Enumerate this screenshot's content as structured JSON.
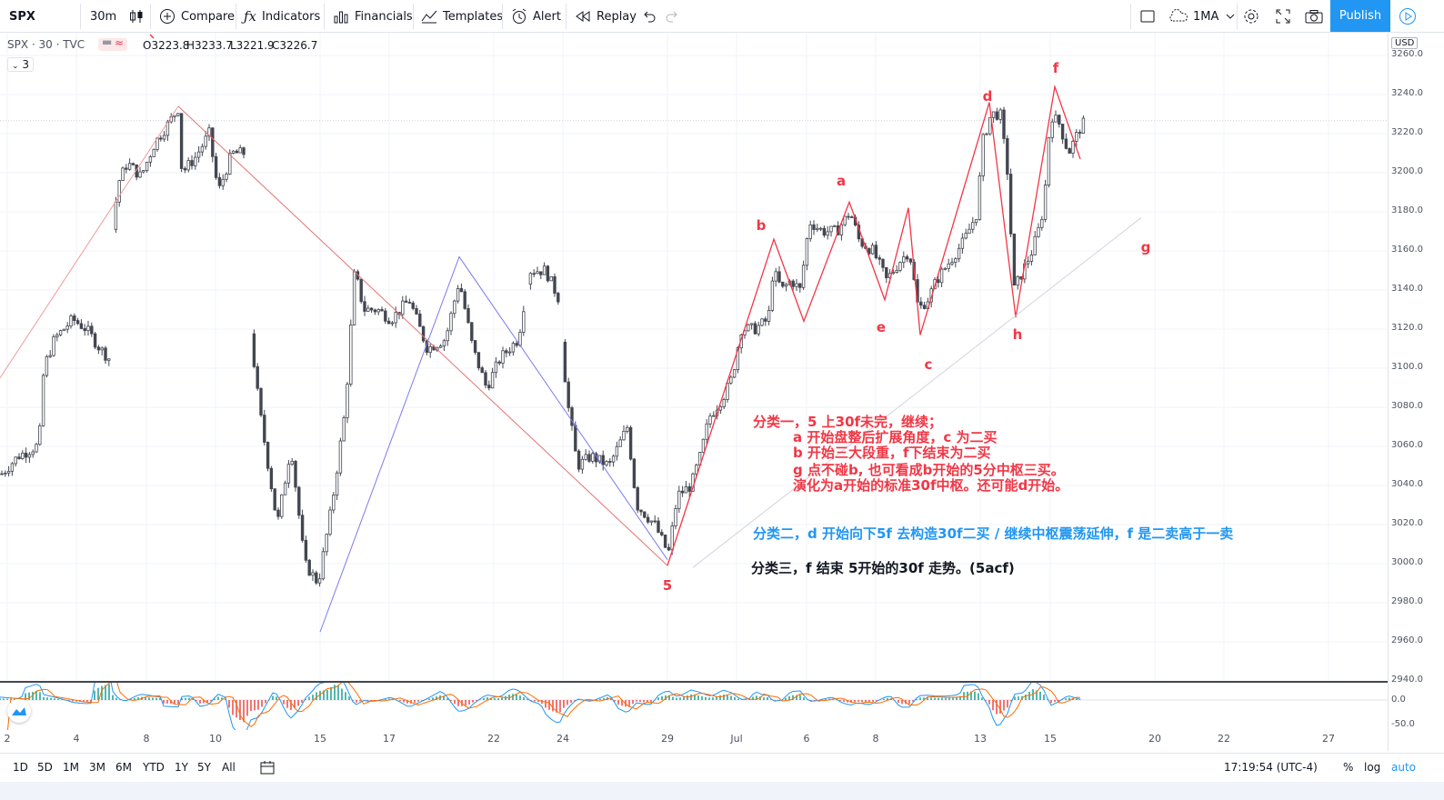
{
  "toolbar": {
    "symbol": "SPX",
    "interval": "30m",
    "compare": "Compare",
    "indicators": "Indicators",
    "financials": "Financials",
    "templates": "Templates",
    "alert": "Alert",
    "replay": "Replay",
    "layout": "1MA",
    "publish": "Publish"
  },
  "legend": {
    "symbol_line": "SPX · 30 · TVC",
    "open": "O3223.8",
    "high": "H3233.7",
    "low": "L3221.9",
    "close": "C3226.7",
    "collapse_count": "3"
  },
  "price_axis": {
    "currency": "USD",
    "ticks": [
      "3260.0",
      "3240.0",
      "3220.0",
      "3200.0",
      "3180.0",
      "3160.0",
      "3140.0",
      "3120.0",
      "3100.0",
      "3080.0",
      "3060.0",
      "3040.0",
      "3020.0",
      "3000.0",
      "2980.0",
      "2960.0",
      "2940.0"
    ],
    "indicator_ticks": [
      "0.0",
      "-50.0"
    ]
  },
  "time_axis": {
    "labels": [
      "2",
      "4",
      "8",
      "10",
      "15",
      "17",
      "22",
      "24",
      "29",
      "Jul",
      "6",
      "8",
      "13",
      "15",
      "20",
      "22",
      "27"
    ]
  },
  "wave_labels": {
    "a": "a",
    "b": "b",
    "c": "c",
    "d": "d",
    "e": "e",
    "f": "f",
    "g": "g",
    "h": "h",
    "five": "5"
  },
  "annotations": {
    "class1_line1": "分类一，5 上30f未完，继续；",
    "class1_line2": "a 开始盘整后扩展角度，c 为二买",
    "class1_line3": "b 开始三大段重，f下结束为二买",
    "class1_line4": "g 点不碰b, 也可看成b开始的5分中枢三买。",
    "class1_line5": "演化为a开始的标准30f中枢。还可能d开始。",
    "class2": "分类二，d 开始向下5f 去构造30f二买 / 继续中枢震荡延伸，f 是二卖高于一卖",
    "class3": "分类三，f 结束 5开始的30f 走势。(5acf)"
  },
  "bottom_bar": {
    "ranges": [
      "1D",
      "5D",
      "1M",
      "3M",
      "6M",
      "YTD",
      "1Y",
      "5Y",
      "All"
    ],
    "clock": "17:19:54 (UTC-4)",
    "percent": "%",
    "log": "log",
    "auto": "auto"
  },
  "colors": {
    "accent": "#2196f3",
    "red": "#f23645",
    "blue_annot": "#2196f3",
    "candle": "#434651"
  }
}
